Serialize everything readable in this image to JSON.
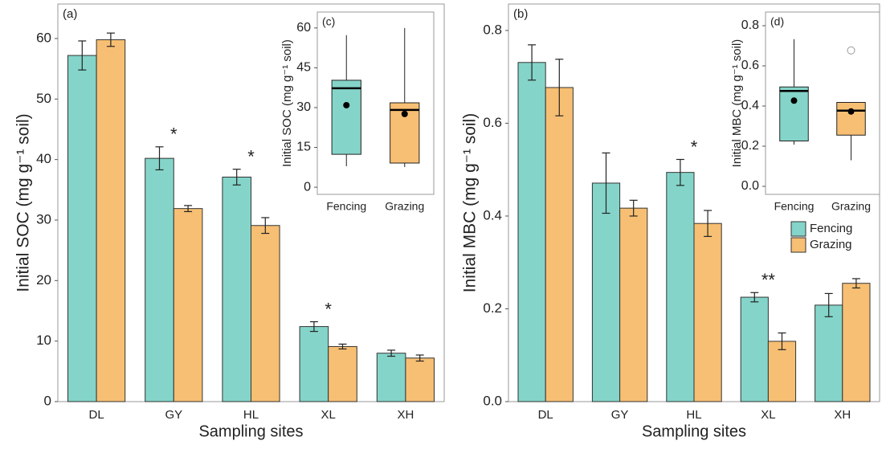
{
  "chart_data": [
    {
      "type": "bar",
      "panel_label": "(a)",
      "ylabel": "Initial SOC (mg g⁻¹ soil)",
      "xlabel": "Sampling sites",
      "categories": [
        "DL",
        "GY",
        "HL",
        "XL",
        "XH"
      ],
      "series": [
        {
          "color": "#84d4c9",
          "values": [
            57.2,
            40.2,
            37.1,
            12.4,
            8.0
          ],
          "errors": [
            2.4,
            1.9,
            1.3,
            0.8,
            0.5
          ]
        },
        {
          "color": "#f7bf73",
          "values": [
            59.8,
            31.9,
            29.1,
            9.1,
            7.2
          ],
          "errors": [
            1.1,
            0.5,
            1.3,
            0.4,
            0.5
          ]
        }
      ],
      "significance": [
        null,
        "*",
        "*",
        "*",
        null
      ],
      "ylim": [
        0,
        65.7
      ],
      "yticks": [
        0,
        10,
        20,
        30,
        40,
        50,
        60
      ]
    },
    {
      "type": "bar",
      "panel_label": "(b)",
      "ylabel": "Initial MBC (mg g⁻¹ soil)",
      "xlabel": "Sampling sites",
      "categories": [
        "DL",
        "GY",
        "HL",
        "XL",
        "XH"
      ],
      "series": [
        {
          "name": "Fencing",
          "color": "#84d4c9",
          "values": [
            0.731,
            0.471,
            0.494,
            0.225,
            0.208
          ],
          "errors": [
            0.038,
            0.065,
            0.028,
            0.01,
            0.025
          ]
        },
        {
          "name": "Grazing",
          "color": "#f7bf73",
          "values": [
            0.677,
            0.417,
            0.384,
            0.13,
            0.255
          ],
          "errors": [
            0.061,
            0.017,
            0.028,
            0.018,
            0.01
          ]
        }
      ],
      "significance": [
        null,
        null,
        "*",
        "**",
        null
      ],
      "legend": "right",
      "ylim": [
        0,
        0.857
      ],
      "yticks": [
        {
          "value": 0,
          "label": "0.0"
        },
        0.2,
        0.4,
        0.6,
        0.8
      ]
    },
    {
      "type": "box",
      "panel_label": "(c)",
      "ylabel": "Initial SOC (mg g⁻¹ soil)",
      "boxes": [
        {
          "name": "Fencing",
          "color": "#84d4c9",
          "whislo": 7.9,
          "q1": 12.4,
          "median": 37.3,
          "q3": 40.3,
          "whishi": 57.3,
          "mean": 30.9
        },
        {
          "name": "Grazing",
          "color": "#f7bf73",
          "whislo": 7.6,
          "q1": 9.1,
          "median": 29.1,
          "q3": 31.8,
          "whishi": 60,
          "mean": 27.6
        }
      ],
      "ylim": [
        -2.7,
        66
      ],
      "yticks": [
        0,
        15,
        30,
        45,
        60
      ]
    },
    {
      "type": "box",
      "panel_label": "(d)",
      "ylabel": "Initial MBC (mg g⁻¹ soil)",
      "boxes": [
        {
          "name": "Fencing",
          "color": "#84d4c9",
          "whislo": 0.208,
          "q1": 0.226,
          "median": 0.475,
          "q3": 0.495,
          "whishi": 0.733,
          "mean": 0.427
        },
        {
          "name": "Grazing",
          "color": "#f7bf73",
          "whislo": 0.13,
          "q1": 0.255,
          "median": 0.377,
          "q3": 0.418,
          "whishi": 0.418,
          "mean": 0.373,
          "outliers": [
            0.677
          ]
        }
      ],
      "ylim": [
        -0.04,
        0.868
      ],
      "yticks": [
        {
          "value": 0,
          "label": "0.0"
        },
        0.2,
        0.4,
        0.6,
        0.8
      ]
    }
  ]
}
